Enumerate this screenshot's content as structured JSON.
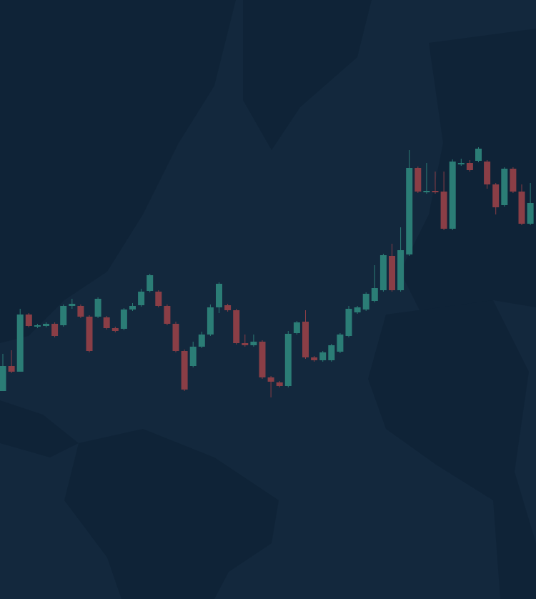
{
  "chart_data": {
    "type": "candlestick",
    "up_color": "#2b7d76",
    "down_color": "#8a3e46",
    "open": [
      291,
      326,
      318,
      398,
      381,
      382,
      385,
      383,
      410,
      410,
      395,
      395,
      394,
      379,
      378,
      405,
      411,
      431,
      430,
      410,
      385,
      347,
      326,
      353,
      370,
      408,
      411,
      404,
      358,
      355,
      360,
      310,
      303,
      298,
      372,
      388,
      338,
      334,
      334,
      346,
      368,
      401,
      405,
      417,
      432,
      480,
      432,
      482,
      603,
      569,
      571,
      570,
      518,
      608,
      610,
      613,
      612,
      580,
      551,
      602,
      570,
      525
    ],
    "high": [
      343,
      348,
      406,
      400,
      385,
      387,
      387,
      412,
      420,
      412,
      397,
      422,
      396,
      381,
      407,
      414,
      434,
      455,
      432,
      412,
      388,
      349,
      360,
      374,
      412,
      443,
      413,
      406,
      370,
      370,
      362,
      312,
      305,
      375,
      389,
      404,
      340,
      347,
      357,
      372,
      410,
      410,
      429,
      467,
      483,
      497,
      520,
      628,
      605,
      610,
      598,
      598,
      615,
      616,
      614,
      632,
      614,
      582,
      604,
      604,
      580,
      582
    ],
    "low": [
      291,
      316,
      318,
      380,
      379,
      380,
      366,
      381,
      406,
      393,
      345,
      393,
      377,
      373,
      376,
      403,
      409,
      429,
      408,
      383,
      345,
      291,
      324,
      351,
      368,
      400,
      402,
      356,
      353,
      353,
      308,
      282,
      296,
      296,
      370,
      336,
      332,
      332,
      332,
      344,
      366,
      399,
      403,
      415,
      430,
      430,
      430,
      480,
      568,
      567,
      567,
      516,
      516,
      606,
      598,
      611,
      574,
      538,
      549,
      568,
      523,
      523
    ],
    "close": [
      326,
      318,
      398,
      382,
      383,
      385,
      368,
      410,
      413,
      395,
      347,
      420,
      379,
      375,
      405,
      410,
      430,
      453,
      410,
      385,
      347,
      293,
      353,
      370,
      408,
      441,
      404,
      358,
      355,
      360,
      310,
      304,
      298,
      371,
      387,
      338,
      334,
      345,
      355,
      370,
      406,
      408,
      427,
      435,
      481,
      432,
      488,
      603,
      570,
      571,
      569,
      518,
      612,
      610,
      600,
      630,
      580,
      548,
      602,
      570,
      525,
      554
    ]
  }
}
